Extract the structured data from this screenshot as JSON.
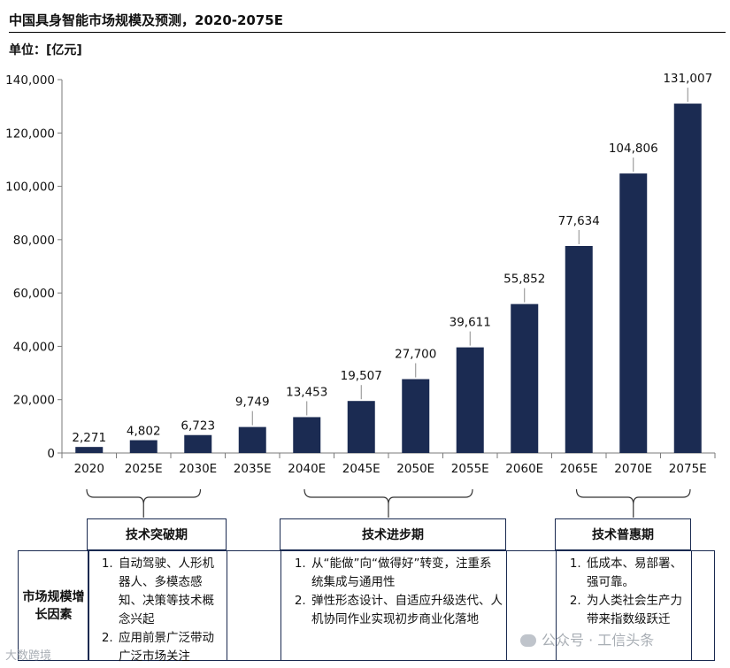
{
  "title": "中国具身智能市场规模及预测，2020-2075E",
  "unit_label": "单位：[亿元]",
  "chart_data": {
    "type": "bar",
    "categories": [
      "2020",
      "2025E",
      "2030E",
      "2035E",
      "2040E",
      "2045E",
      "2050E",
      "2055E",
      "2060E",
      "2065E",
      "2070E",
      "2075E"
    ],
    "values": [
      2271,
      4802,
      6723,
      9749,
      13453,
      19507,
      27700,
      39611,
      55852,
      77634,
      104806,
      131007
    ],
    "data_labels": [
      "2,271",
      "4,802",
      "6,723",
      "9,749",
      "13,453",
      "19,507",
      "27,700",
      "39,611",
      "55,852",
      "77,634",
      "104,806",
      "131,007"
    ],
    "ylim": [
      0,
      140000
    ],
    "yticks": [
      0,
      20000,
      40000,
      60000,
      80000,
      100000,
      120000,
      140000
    ],
    "ytick_labels": [
      "0",
      "20,000",
      "40,000",
      "60,000",
      "80,000",
      "100,000",
      "120,000",
      "140,000"
    ],
    "bar_color": "#1b2b52",
    "grid": false,
    "legend": "none",
    "title": "",
    "xlabel": "",
    "ylabel": ""
  },
  "phases": [
    {
      "label": "技术突破期"
    },
    {
      "label": "技术进步期"
    },
    {
      "label": "技术普惠期"
    }
  ],
  "factors": {
    "row_label": "市场规模增长因素",
    "columns": [
      {
        "items": [
          "自动驾驶、人形机器人、多模态感知、决策等技术概念兴起",
          "应用前景广泛带动广泛市场关注"
        ]
      },
      {
        "items": [
          "从“能做”向“做得好”转变，注重系统集成与通用性",
          "弹性形态设计、自适应升级迭代、人机协同作业实现初步商业化落地"
        ]
      },
      {
        "items": [
          "低成本、易部署、强可靠。",
          "为人类社会生产力带来指数级跃迁"
        ]
      }
    ]
  },
  "watermarks": {
    "left": "大数跨境",
    "right": "公众号 · 工信头条"
  }
}
